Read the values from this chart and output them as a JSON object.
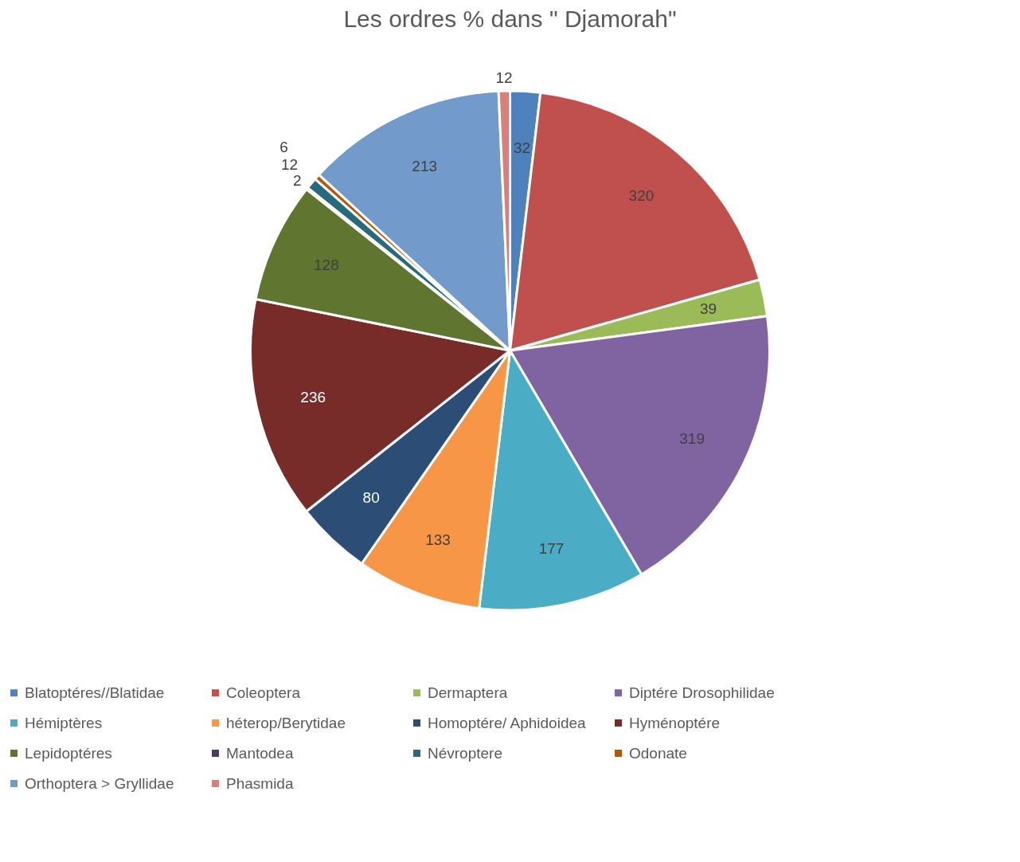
{
  "chart_data": {
    "type": "pie",
    "title": "Les ordres % dans \" Djamorah\"",
    "categories": [
      "Blatoptéres//Blatidae",
      "Coleoptera",
      "Dermaptera",
      "Diptére Drosophilidae",
      "Hémiptères",
      "héterop/Berytidae",
      "Homoptére/ Aphidoidea",
      "Hyménoptére",
      "Lepidoptéres",
      "Mantodea",
      "Névroptere",
      "Odonate",
      "Orthoptera > Gryllidae",
      "Phasmida"
    ],
    "values": [
      32,
      320,
      39,
      319,
      177,
      133,
      80,
      236,
      128,
      2,
      12,
      6,
      213,
      12
    ],
    "colors": [
      "#4f81bd",
      "#c0504d",
      "#9bbb59",
      "#8064a2",
      "#4bacc6",
      "#f79646",
      "#2c4d75",
      "#772c2a",
      "#5f7530",
      "#4d3b62",
      "#276a7c",
      "#b65708",
      "#729aca",
      "#d9807c"
    ],
    "data_labels": true,
    "legend": "bottom"
  }
}
